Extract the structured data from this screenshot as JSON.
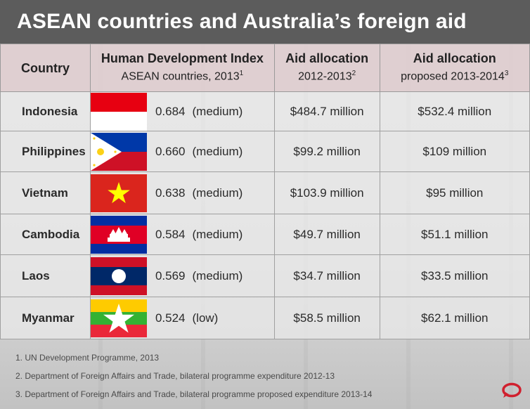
{
  "title": "ASEAN countries and Australia’s foreign aid",
  "headers": {
    "country": "Country",
    "hdi_main": "Human Development Index",
    "hdi_sub": "ASEAN countries, 2013",
    "hdi_sup": "1",
    "aid1_main": "Aid allocation",
    "aid1_sub": "2012-2013",
    "aid1_sup": "2",
    "aid2_main": "Aid allocation",
    "aid2_sub": "proposed 2013-2014",
    "aid2_sup": "3"
  },
  "rows": [
    {
      "country": "Indonesia",
      "flag": "indonesia-flag",
      "hdi": "0.684",
      "level": "(medium)",
      "aid_2012": "$484.7 million",
      "aid_2013": "$532.4 million"
    },
    {
      "country": "Philippines",
      "flag": "philippines-flag",
      "hdi": "0.660",
      "level": "(medium)",
      "aid_2012": "$99.2 million",
      "aid_2013": "$109 million"
    },
    {
      "country": "Vietnam",
      "flag": "vietnam-flag",
      "hdi": "0.638",
      "level": "(medium)",
      "aid_2012": "$103.9 million",
      "aid_2013": "$95 million"
    },
    {
      "country": "Cambodia",
      "flag": "cambodia-flag",
      "hdi": "0.584",
      "level": "(medium)",
      "aid_2012": "$49.7 million",
      "aid_2013": "$51.1 million"
    },
    {
      "country": "Laos",
      "flag": "laos-flag",
      "hdi": "0.569",
      "level": "(medium)",
      "aid_2012": "$34.7 million",
      "aid_2013": "$33.5 million"
    },
    {
      "country": "Myanmar",
      "flag": "myanmar-flag",
      "hdi": "0.524",
      "level": "(low)",
      "aid_2012": "$58.5 million",
      "aid_2013": "$62.1 million"
    }
  ],
  "footnotes": [
    "1. UN Development Programme, 2013",
    "2. Department of Foreign Affairs and Trade, bilateral programme expenditure 2012-13",
    "3. Department of Foreign Affairs and Trade, bilateral programme proposed expenditure 2013-14"
  ],
  "colors": {
    "title_bg": "#5c5c5c",
    "header_bg": "#decdd0",
    "logo": "#d0202e"
  }
}
